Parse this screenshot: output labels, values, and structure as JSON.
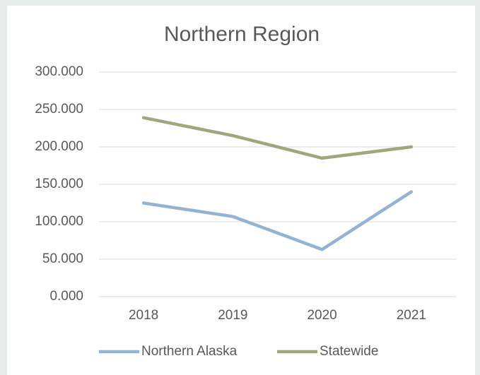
{
  "chart_data": {
    "type": "line",
    "title": "Northern Region",
    "categories": [
      "2018",
      "2019",
      "2020",
      "2021"
    ],
    "series": [
      {
        "name": "Northern Alaska",
        "color": "#93b3d2",
        "values": [
          125,
          107,
          63,
          140
        ]
      },
      {
        "name": "Statewide",
        "color": "#9fa87c",
        "values": [
          239,
          215,
          185,
          200
        ]
      }
    ],
    "ylim": [
      0,
      300
    ],
    "yticks": [
      {
        "value": 0,
        "label": "0.000"
      },
      {
        "value": 50,
        "label": "50.000"
      },
      {
        "value": 100,
        "label": "100.000"
      },
      {
        "value": 150,
        "label": "150.000"
      },
      {
        "value": 200,
        "label": "200.000"
      },
      {
        "value": 250,
        "label": "250.000"
      },
      {
        "value": 300,
        "label": "300.000"
      }
    ],
    "grid": true,
    "legend": "bottom"
  }
}
